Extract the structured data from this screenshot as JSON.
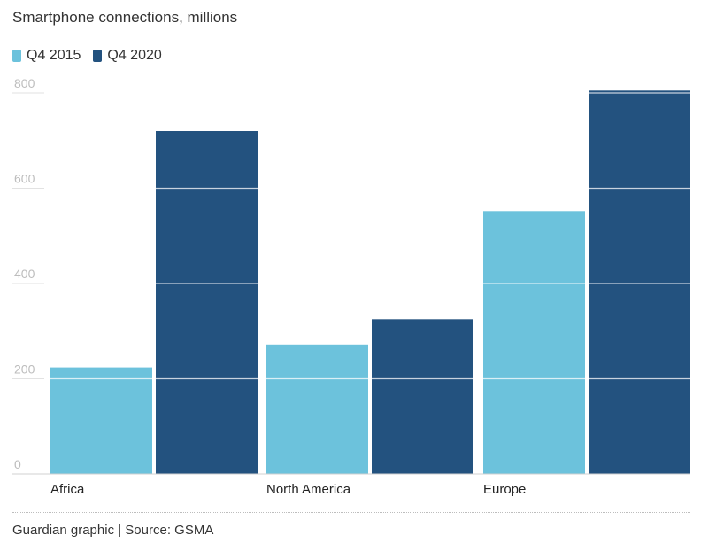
{
  "chart_data": {
    "type": "bar",
    "title": "Smartphone connections, millions",
    "categories": [
      "Africa",
      "North America",
      "Europe"
    ],
    "series": [
      {
        "name": "Q4 2015",
        "values": [
          224,
          272,
          552
        ],
        "color": "#6cc2dc"
      },
      {
        "name": "Q4 2020",
        "values": [
          720,
          325,
          805
        ],
        "color": "#23527f"
      }
    ],
    "yticks": [
      0,
      200,
      400,
      600,
      800
    ],
    "ytick_labels": [
      "0",
      "200",
      "400",
      "600",
      "800"
    ],
    "ylim": [
      0,
      820
    ],
    "xlabel": "",
    "ylabel": "",
    "grid": true,
    "legend": "top-left"
  },
  "footer": {
    "source": "Guardian graphic | Source: GSMA"
  }
}
